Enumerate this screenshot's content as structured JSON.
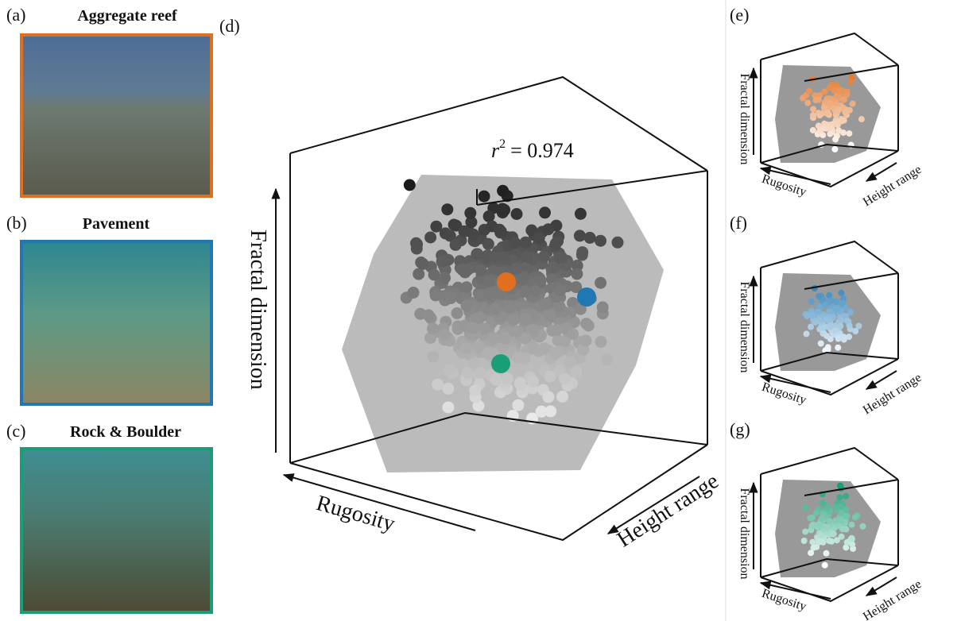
{
  "photos": [
    {
      "label": "(a)",
      "title": "Aggregate reef"
    },
    {
      "label": "(b)",
      "title": "Pavement"
    },
    {
      "label": "(c)",
      "title": "Rock & Boulder"
    }
  ],
  "main": {
    "label": "(d)",
    "stat": {
      "symbol": "r",
      "exponent": "2",
      "value_text": "= 0.974"
    },
    "axes": {
      "vertical": "Fractal dimension",
      "left": "Rugosity",
      "right": "Height range"
    }
  },
  "small": [
    {
      "label": "(e)",
      "axes": {
        "vertical": "Fractal dimension",
        "left": "Rugosity",
        "right": "Height range"
      }
    },
    {
      "label": "(f)",
      "axes": {
        "vertical": "Fractal dimension",
        "left": "Rugosity",
        "right": "Height range"
      }
    },
    {
      "label": "(g)",
      "axes": {
        "vertical": "Fractal dimension",
        "left": "Rugosity",
        "right": "Height range"
      }
    }
  ]
}
